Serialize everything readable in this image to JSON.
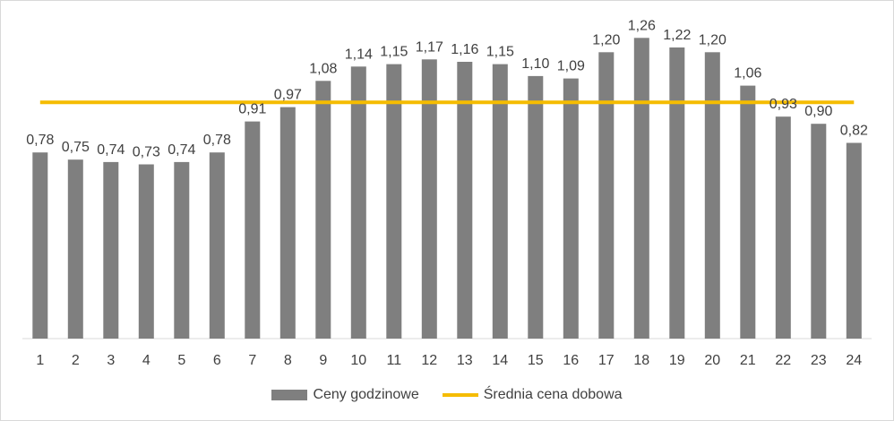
{
  "chart_data": {
    "type": "bar",
    "title": "",
    "xlabel": "",
    "ylabel": "",
    "categories": [
      "1",
      "2",
      "3",
      "4",
      "5",
      "6",
      "7",
      "8",
      "9",
      "10",
      "11",
      "12",
      "13",
      "14",
      "15",
      "16",
      "17",
      "18",
      "19",
      "20",
      "21",
      "22",
      "23",
      "24"
    ],
    "series": [
      {
        "name": "Ceny godzinowe",
        "type": "bar",
        "color": "#7f7f7f",
        "values": [
          0.78,
          0.75,
          0.74,
          0.73,
          0.74,
          0.78,
          0.91,
          0.97,
          1.08,
          1.14,
          1.15,
          1.17,
          1.16,
          1.15,
          1.1,
          1.09,
          1.2,
          1.26,
          1.22,
          1.2,
          1.06,
          0.93,
          0.9,
          0.82
        ],
        "labels": [
          "0,78",
          "0,75",
          "0,74",
          "0,73",
          "0,74",
          "0,78",
          "0,91",
          "0,97",
          "1,08",
          "1,14",
          "1,15",
          "1,17",
          "1,16",
          "1,15",
          "1,10",
          "1,09",
          "1,20",
          "1,26",
          "1,22",
          "1,20",
          "1,06",
          "0,93",
          "0,90",
          "0,82"
        ]
      },
      {
        "name": "Średnia cena dobowa",
        "type": "line",
        "color": "#f5bc00",
        "value": 0.99
      }
    ],
    "ylim": [
      0,
      1.34
    ],
    "grid": false,
    "legend": "bottom"
  }
}
